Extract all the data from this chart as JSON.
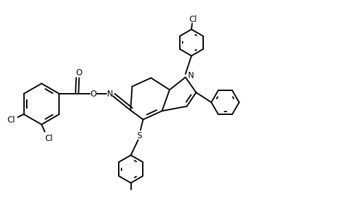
{
  "bg_color": "#ffffff",
  "line_color": "#000000",
  "lw": 1.4,
  "figsize": [
    5.07,
    3.04
  ],
  "dpi": 100,
  "xlim": [
    0,
    10.5
  ],
  "ylim": [
    0,
    6.3
  ]
}
